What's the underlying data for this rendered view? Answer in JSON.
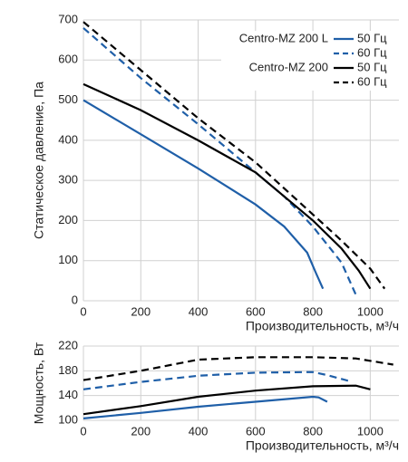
{
  "chart_data": [
    {
      "type": "line",
      "y_label": "Статическое давление, Па",
      "x_label": "Производительность, м³/ч",
      "xlim": [
        0,
        1100
      ],
      "ylim": [
        0,
        700
      ],
      "xticks": [
        0,
        200,
        400,
        600,
        800,
        1000
      ],
      "yticks": [
        0,
        100,
        200,
        300,
        400,
        500,
        600,
        700
      ],
      "grid": true,
      "legend": "upper right",
      "groups": [
        {
          "name": "Centro-MZ 200 L",
          "series": [
            {
              "name": "50 Гц",
              "color": "#1f5fa8",
              "dashed": false,
              "x": [
                0,
                200,
                400,
                600,
                700,
                780,
                810,
                835
              ],
              "values": [
                500,
                415,
                330,
                240,
                185,
                120,
                70,
                30
              ]
            },
            {
              "name": "60 Гц",
              "color": "#1f5fa8",
              "dashed": true,
              "x": [
                0,
                200,
                400,
                600,
                700,
                800,
                900,
                950
              ],
              "values": [
                680,
                555,
                440,
                320,
                260,
                185,
                95,
                15
              ]
            }
          ]
        },
        {
          "name": "Centro-MZ 200",
          "series": [
            {
              "name": "50 Гц",
              "color": "#000000",
              "dashed": false,
              "x": [
                0,
                200,
                400,
                600,
                800,
                900,
                960,
                1000
              ],
              "values": [
                540,
                475,
                400,
                320,
                200,
                130,
                75,
                30
              ]
            },
            {
              "name": "60 Гц",
              "color": "#000000",
              "dashed": true,
              "x": [
                0,
                200,
                400,
                600,
                800,
                900,
                1000,
                1050
              ],
              "values": [
                695,
                575,
                455,
                345,
                215,
                150,
                80,
                30
              ]
            }
          ]
        }
      ]
    },
    {
      "type": "line",
      "y_label": "Мощность, Вт",
      "x_label": "Производительность, м³/ч",
      "xlim": [
        0,
        1100
      ],
      "ylim": [
        100,
        220
      ],
      "xticks": [
        0,
        200,
        400,
        600,
        800,
        1000
      ],
      "yticks": [
        100,
        140,
        180,
        220
      ],
      "grid": true,
      "series": [
        {
          "color": "#1f5fa8",
          "dashed": false,
          "x": [
            0,
            200,
            400,
            600,
            800,
            820,
            850
          ],
          "values": [
            103,
            112,
            122,
            130,
            138,
            137,
            130
          ]
        },
        {
          "color": "#1f5fa8",
          "dashed": true,
          "x": [
            0,
            200,
            400,
            600,
            800,
            850,
            930
          ],
          "values": [
            150,
            162,
            172,
            177,
            178,
            173,
            163
          ]
        },
        {
          "color": "#000000",
          "dashed": false,
          "x": [
            0,
            200,
            400,
            600,
            800,
            950,
            1000
          ],
          "values": [
            110,
            123,
            138,
            148,
            155,
            156,
            150
          ]
        },
        {
          "color": "#000000",
          "dashed": true,
          "x": [
            0,
            200,
            400,
            600,
            800,
            950,
            1080
          ],
          "values": [
            165,
            180,
            198,
            202,
            202,
            200,
            190
          ]
        }
      ]
    }
  ]
}
